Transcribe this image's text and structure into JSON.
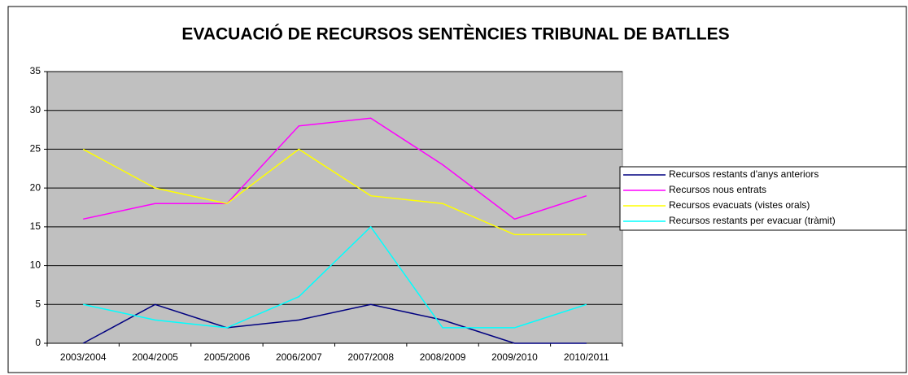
{
  "chart_data": {
    "type": "line",
    "title": "EVACUACIÓ DE RECURSOS SENTÈNCIES TRIBUNAL DE BATLLES",
    "categories": [
      "2003/2004",
      "2004/2005",
      "2005/2006",
      "2006/2007",
      "2007/2008",
      "2008/2009",
      "2009/2010",
      "2010/2011"
    ],
    "series": [
      {
        "name": "Recursos restants d'anys anteriors",
        "color": "#000080",
        "values": [
          0,
          5,
          2,
          3,
          5,
          3,
          0,
          0
        ]
      },
      {
        "name": "Recursos nous entrats",
        "color": "#ff00ff",
        "values": [
          16,
          18,
          18,
          28,
          29,
          23,
          16,
          19
        ]
      },
      {
        "name": "Recursos evacuats (vistes orals)",
        "color": "#ffff00",
        "values": [
          25,
          20,
          18,
          25,
          19,
          18,
          14,
          14
        ]
      },
      {
        "name": "Recursos restants per evacuar (tràmit)",
        "color": "#00ffff",
        "values": [
          5,
          3,
          2,
          6,
          15,
          2,
          2,
          5
        ]
      }
    ],
    "ylim": [
      0,
      35
    ],
    "yticks": [
      0,
      5,
      10,
      15,
      20,
      25,
      30,
      35
    ],
    "grid": true,
    "legend": "right"
  }
}
